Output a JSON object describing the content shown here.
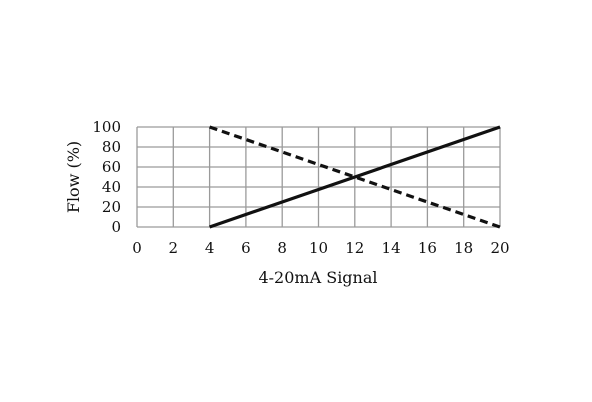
{
  "chart_data": {
    "type": "line",
    "xlabel": "4-20mA Signal",
    "ylabel": "Flow (%)",
    "xlim": [
      0,
      20
    ],
    "ylim": [
      0,
      100
    ],
    "xticks": [
      "0",
      "2",
      "4",
      "6",
      "8",
      "10",
      "12",
      "14",
      "16",
      "18",
      "20"
    ],
    "yticks": [
      "0",
      "20",
      "40",
      "60",
      "80",
      "100"
    ],
    "grid": true,
    "legend": "none",
    "series": [
      {
        "style": "solid",
        "color": "#111111",
        "x": [
          4,
          20
        ],
        "y": [
          0,
          100
        ]
      },
      {
        "style": "dashed",
        "color": "#111111",
        "x": [
          4,
          20
        ],
        "y": [
          100,
          0
        ]
      }
    ]
  }
}
